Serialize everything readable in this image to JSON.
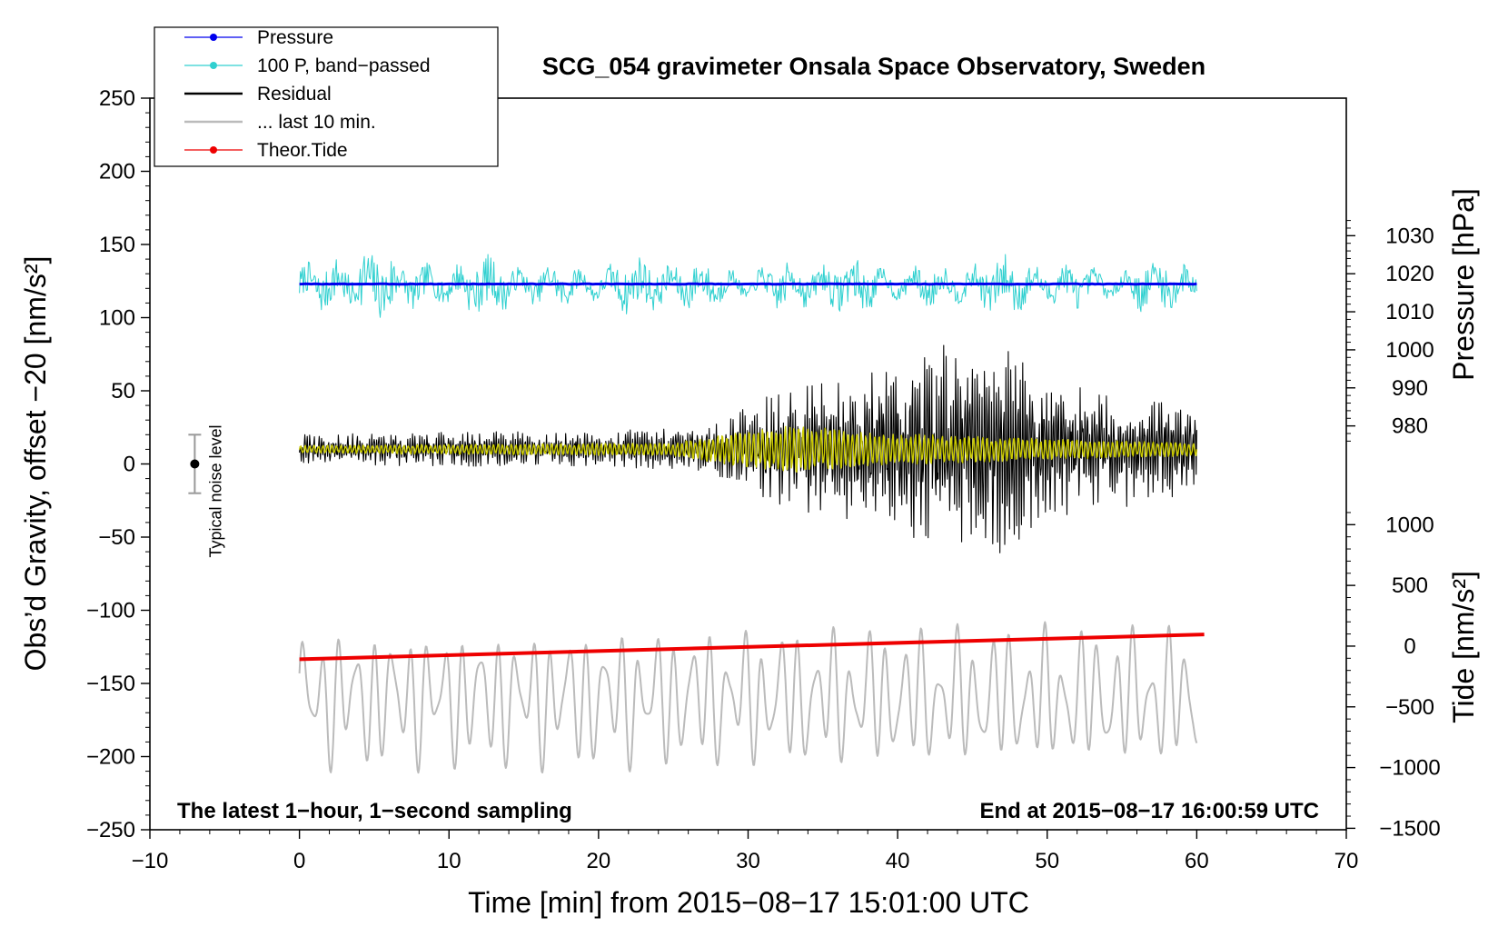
{
  "chart_data": {
    "type": "line",
    "title": "SCG_054 gravimeter Onsala Space Observatory, Sweden",
    "xlabel": "Time [min] from 2015−08−17 15:01:00 UTC",
    "ylabel": "Obs’d Gravity, offset −20 [nm/s²]",
    "xlim": [
      -10,
      70
    ],
    "ylim": [
      -250,
      250
    ],
    "x_ticks": [
      -10,
      0,
      10,
      20,
      30,
      40,
      50,
      60,
      70
    ],
    "x_tick_labels": [
      "−10",
      "0",
      "10",
      "20",
      "30",
      "40",
      "50",
      "60",
      "70"
    ],
    "y_ticks": [
      250,
      200,
      150,
      100,
      50,
      0,
      -50,
      -100,
      -150,
      -200,
      -250
    ],
    "y_tick_labels": [
      "250",
      "200",
      "150",
      "100",
      "50",
      "0",
      "−50",
      "−100",
      "−150",
      "−200",
      "−250"
    ],
    "right_axis_pressure": {
      "label": "Pressure [hPa]",
      "ticks": [
        1030,
        1020,
        1010,
        1000,
        990,
        980
      ],
      "tick_labels": [
        "1030",
        "1020",
        "1010",
        "1000",
        "990",
        "980"
      ],
      "gravity_equivalent_per_hpa": 2.6,
      "hpa_at_gravity_zero": 970
    },
    "right_axis_tide": {
      "label": "Tide [nm/s²]",
      "ticks": [
        1000,
        500,
        0,
        -500,
        -1000,
        -1500
      ],
      "tick_labels": [
        "1000",
        "500",
        "0",
        "−500",
        "−1000",
        "−1500"
      ],
      "gravity_equivalent_per_unit": 0.083,
      "value_at_gravity_zero": 1500
    },
    "legend": [
      {
        "label": "Pressure",
        "color": "#0000ee",
        "marker": true
      },
      {
        "label": "100 P, band−passed",
        "color": "#30d0d0",
        "marker": true
      },
      {
        "label": "Residual",
        "color": "#000000",
        "marker": false
      },
      {
        "label": "... last 10 min.",
        "color": "#bbbbbb",
        "marker": false
      },
      {
        "label": "Theor.Tide",
        "color": "#ee0000",
        "marker": true
      }
    ],
    "legend_position": "top-left",
    "noise": {
      "label": "Typical noise level",
      "x": -7,
      "center": 0,
      "half_range": 20
    },
    "footnote_left": "The latest 1−hour, 1−second sampling",
    "footnote_right": "End at 2015−08−17 16:00:59 UTC",
    "series": [
      {
        "name": "Pressure",
        "color": "#0000ee",
        "unit": "hPa",
        "x_range": [
          0,
          60
        ],
        "value": 1017.3,
        "note": "nearly constant"
      },
      {
        "name": "100 P, band−passed",
        "color": "#30d0d0",
        "x_range": [
          0,
          60
        ],
        "center": 122,
        "min": 80,
        "max": 162
      },
      {
        "name": "Residual",
        "color": "#000000",
        "x_range": [
          0,
          60
        ],
        "center": 10,
        "envelope_x": [
          0,
          10,
          20,
          28,
          31,
          35,
          40,
          43,
          45,
          47,
          50,
          55,
          60
        ],
        "envelope_amp": [
          10,
          12,
          12,
          18,
          35,
          48,
          55,
          72,
          60,
          72,
          48,
          40,
          30
        ],
        "min": -79,
        "max": 101
      },
      {
        "name": "Residual smoothed",
        "color": "#cccc00",
        "x_range": [
          0,
          60
        ],
        "center": 10,
        "envelope_x": [
          0,
          25,
          30,
          33,
          40,
          50,
          60
        ],
        "envelope_amp": [
          3,
          5,
          14,
          18,
          12,
          8,
          5
        ]
      },
      {
        "name": "... last 10 min.",
        "color": "#bbbbbb",
        "x_range": [
          0,
          60
        ],
        "center": -160,
        "min": -217,
        "max": -97
      },
      {
        "name": "Theor.Tide",
        "color": "#ee0000",
        "unit": "nm/s²",
        "x": [
          0,
          60.5
        ],
        "values": [
          -108,
          96
        ]
      }
    ]
  }
}
